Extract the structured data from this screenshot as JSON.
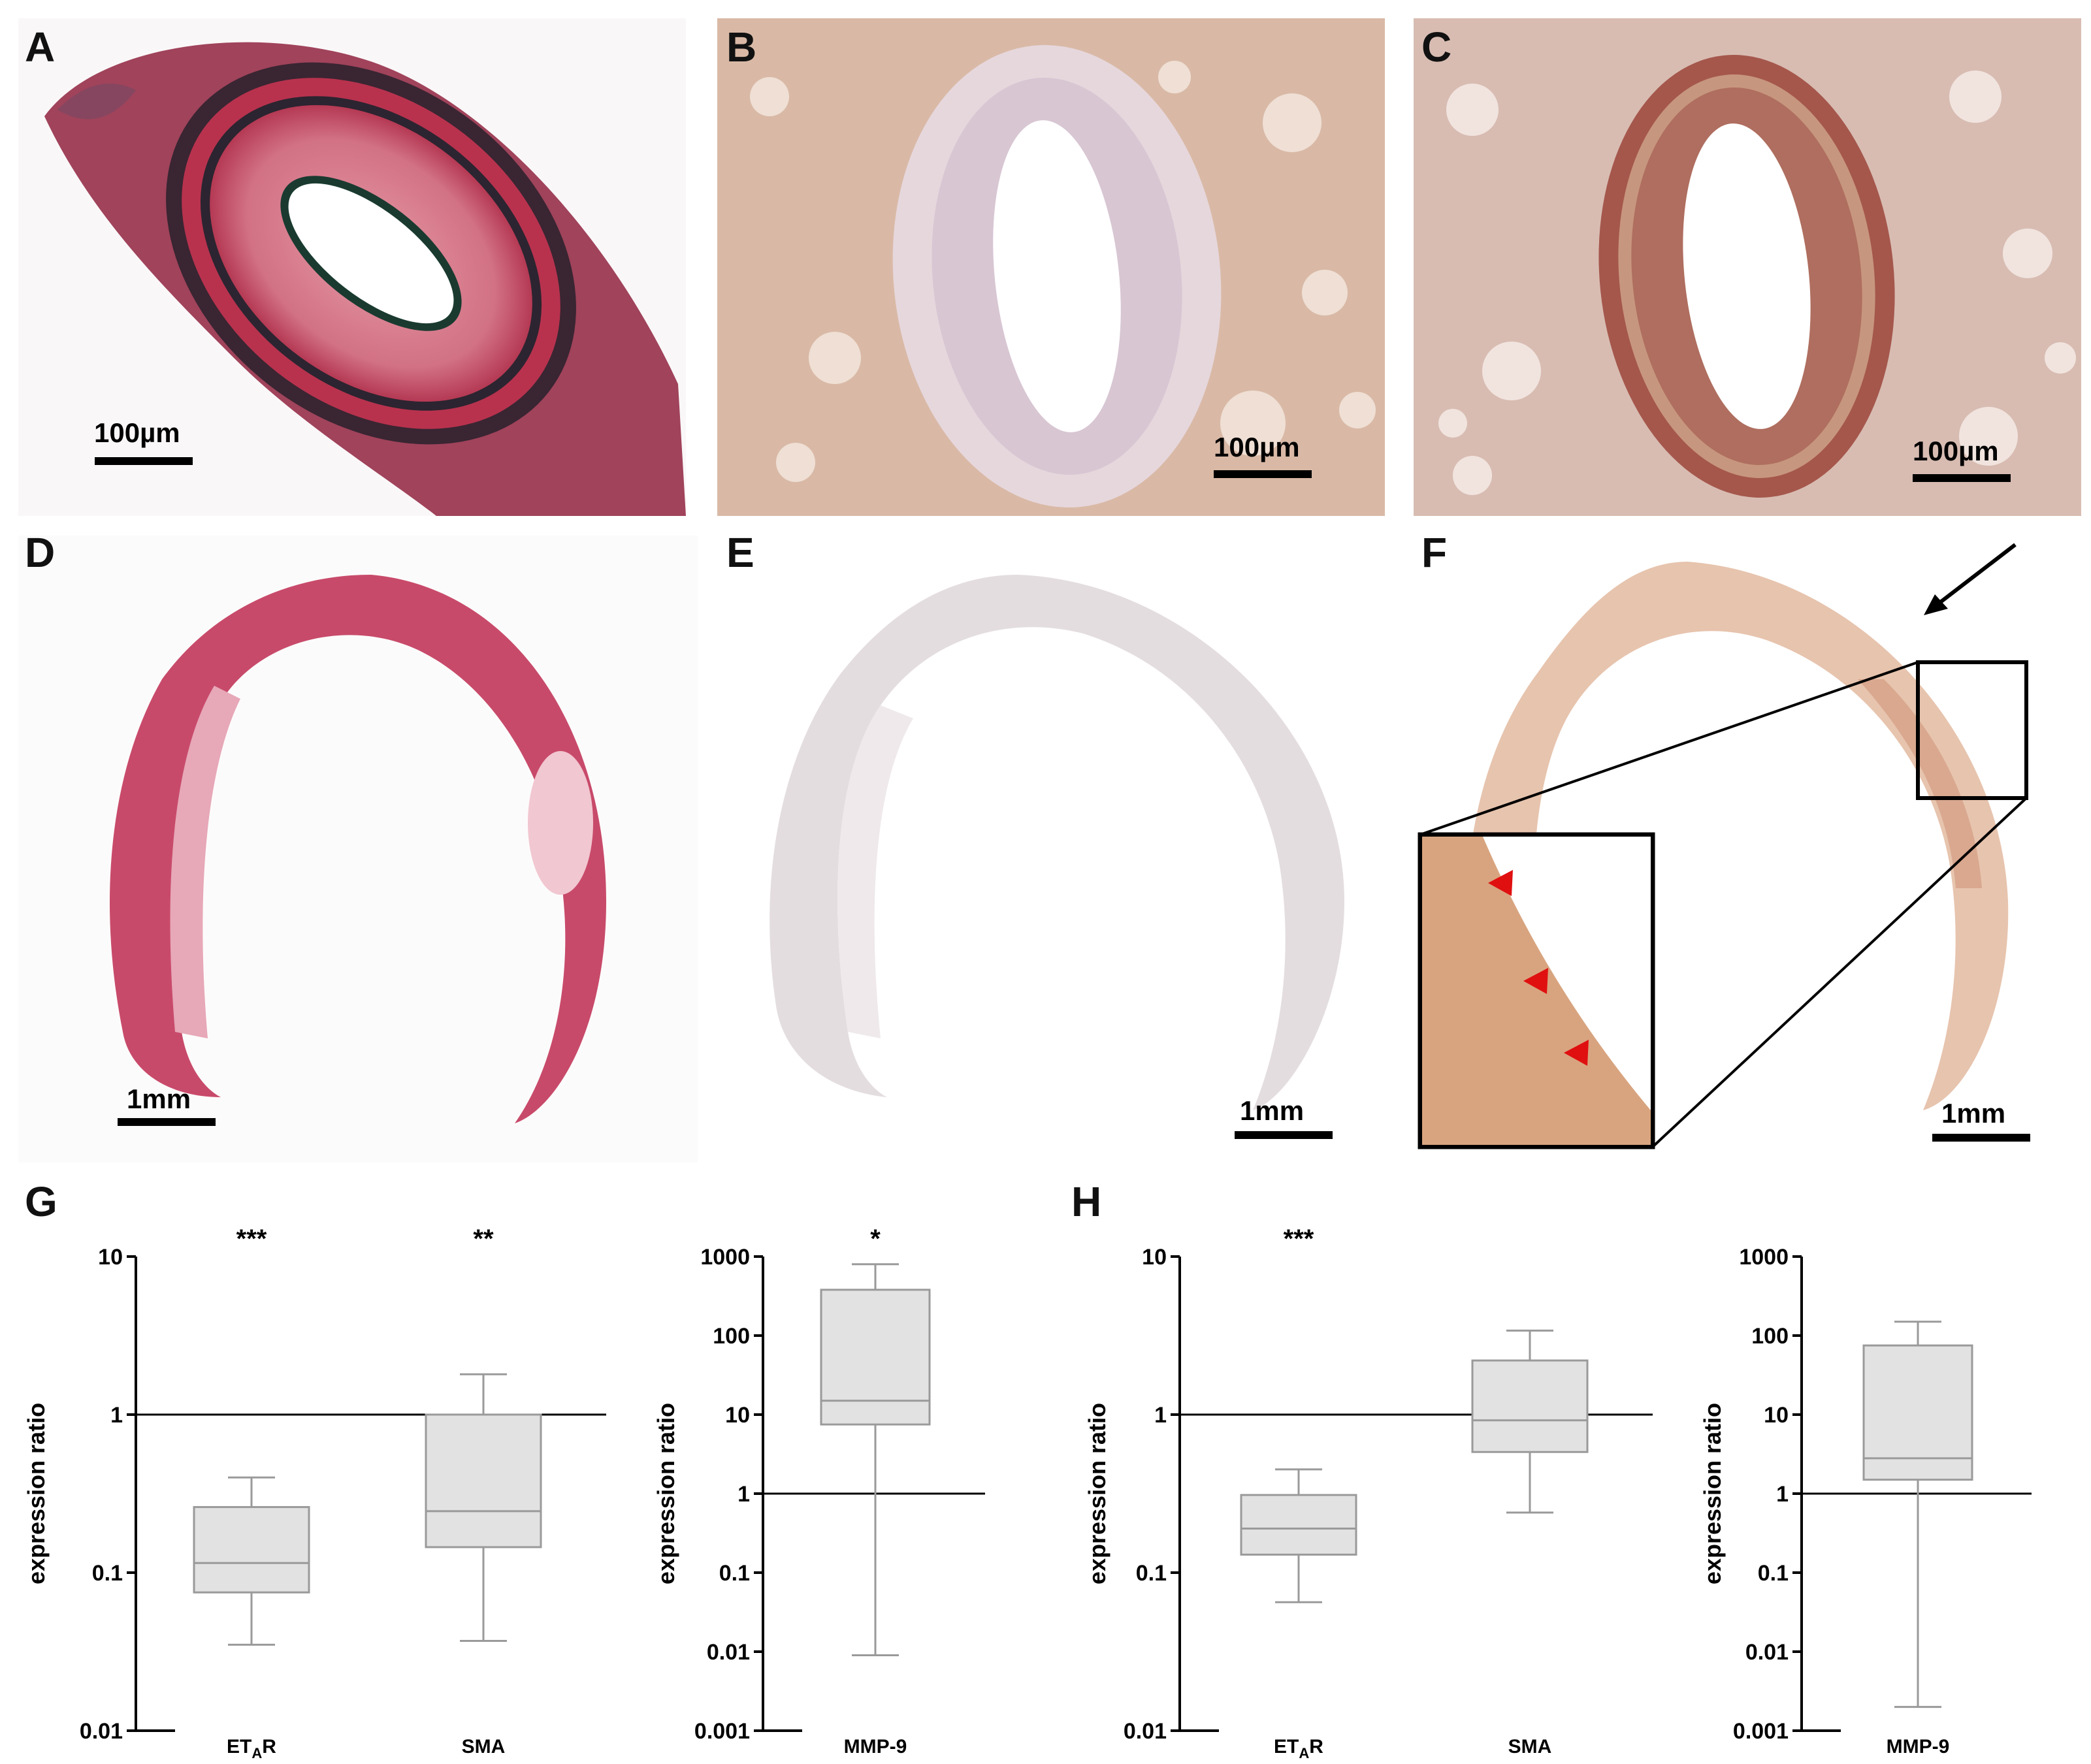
{
  "panels": {
    "A": {
      "letter": "A",
      "scale": "100µm"
    },
    "B": {
      "letter": "B",
      "scale": "100µm"
    },
    "C": {
      "letter": "C",
      "scale": "100µm"
    },
    "D": {
      "letter": "D",
      "scale": "1mm"
    },
    "E": {
      "letter": "E",
      "scale": "1mm"
    },
    "F": {
      "letter": "F",
      "scale": "1mm"
    },
    "G": {
      "letter": "G"
    },
    "H": {
      "letter": "H"
    }
  },
  "colors": {
    "vg_stain": "#b8324e",
    "control_ihc": "#d9b9a6",
    "positive_ihc": "#c7967e",
    "he_section": "#c84a6a",
    "neg_section": "#e4dde0",
    "pos_section": "#e7c4ae",
    "arrowhead": "#e01010",
    "box_fill": "#e2e2e2",
    "box_stroke": "#9a9a9a"
  },
  "chart_data": [
    {
      "panel": "G",
      "type": "box",
      "scale": "log",
      "ylabel": "expression ratio",
      "ylim": [
        0.01,
        10
      ],
      "yticks": [
        "0.01",
        "0.1",
        "1",
        "10"
      ],
      "reference_line": 1,
      "categories": [
        "ETAR",
        "SMA"
      ],
      "significance": [
        "***",
        "**"
      ],
      "boxes": [
        {
          "min": 0.035,
          "q1": 0.075,
          "median": 0.115,
          "q3": 0.26,
          "max": 0.4
        },
        {
          "min": 0.037,
          "q1": 0.145,
          "median": 0.245,
          "q3": 1.0,
          "max": 1.8
        }
      ]
    },
    {
      "panel": "G",
      "type": "box",
      "scale": "log",
      "ylabel": "expression ratio",
      "ylim": [
        0.001,
        1000
      ],
      "yticks": [
        "0.001",
        "0.01",
        "0.1",
        "1",
        "10",
        "100",
        "1000"
      ],
      "reference_line": 1,
      "categories": [
        "MMP-9"
      ],
      "significance": [
        "*"
      ],
      "boxes": [
        {
          "min": 0.009,
          "q1": 7.5,
          "median": 15,
          "q3": 380,
          "max": 800
        }
      ]
    },
    {
      "panel": "H",
      "type": "box",
      "scale": "log",
      "ylabel": "expression ratio",
      "ylim": [
        0.01,
        10
      ],
      "yticks": [
        "0.01",
        "0.1",
        "1",
        "10"
      ],
      "reference_line": 1,
      "categories": [
        "ETAR",
        "SMA"
      ],
      "significance": [
        "***",
        ""
      ],
      "boxes": [
        {
          "min": 0.065,
          "q1": 0.13,
          "median": 0.19,
          "q3": 0.31,
          "max": 0.45
        },
        {
          "min": 0.24,
          "q1": 0.58,
          "median": 0.92,
          "q3": 2.2,
          "max": 3.4
        }
      ]
    },
    {
      "panel": "H",
      "type": "box",
      "scale": "log",
      "ylabel": "expression ratio",
      "ylim": [
        0.001,
        1000
      ],
      "yticks": [
        "0.001",
        "0.01",
        "0.1",
        "1",
        "10",
        "100",
        "1000"
      ],
      "reference_line": 1,
      "categories": [
        "MMP-9"
      ],
      "significance": [
        ""
      ],
      "boxes": [
        {
          "min": 0.002,
          "q1": 1.5,
          "median": 2.8,
          "q3": 75,
          "max": 150
        }
      ]
    }
  ]
}
